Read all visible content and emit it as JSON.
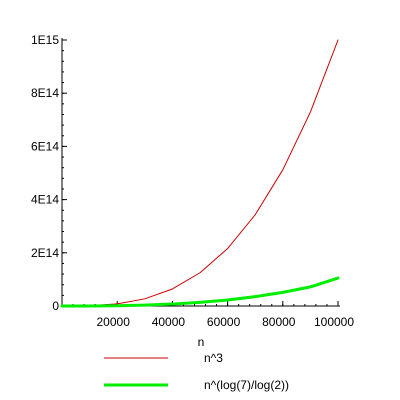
{
  "chart_data": {
    "type": "line",
    "xlabel": "n",
    "ylabel": "",
    "xlim": [
      0,
      100000
    ],
    "ylim": [
      0,
      1000000000000000.0
    ],
    "x_ticks": [
      20000,
      40000,
      60000,
      80000,
      100000
    ],
    "x_tick_labels": [
      "20000",
      "40000",
      "60000",
      "80000",
      "100000"
    ],
    "y_ticks": [
      0,
      200000000000000.0,
      400000000000000.0,
      600000000000000.0,
      800000000000000.0,
      1000000000000000.0
    ],
    "y_tick_labels": [
      "0",
      "2E14",
      "4E14",
      "6E14",
      "8E14",
      "1E15"
    ],
    "grid": false,
    "legend_position": "bottom",
    "series": [
      {
        "name": "n^3",
        "color": "#cc0000",
        "x": [
          0,
          10000,
          20000,
          30000,
          40000,
          50000,
          60000,
          70000,
          80000,
          90000,
          100000
        ],
        "y": [
          0,
          1000000000000.0,
          8000000000000.0,
          27000000000000.0,
          64000000000000.0,
          125000000000000.0,
          216000000000000.0,
          343000000000000.0,
          512000000000000.0,
          729000000000000.0,
          1000000000000000.0
        ]
      },
      {
        "name": "n^(log(7)/log(2))",
        "color": "#00ee00",
        "x": [
          0,
          10000,
          20000,
          30000,
          40000,
          50000,
          60000,
          70000,
          80000,
          90000,
          100000
        ],
        "y": [
          0,
          150000000000.0,
          1050000000000.0,
          3250000000000.0,
          7300000000000.0,
          13800000000000.0,
          22700000000000.0,
          35100000000000.0,
          51200000000000.0,
          71800000000000.0,
          105000000000000.0
        ]
      }
    ]
  }
}
